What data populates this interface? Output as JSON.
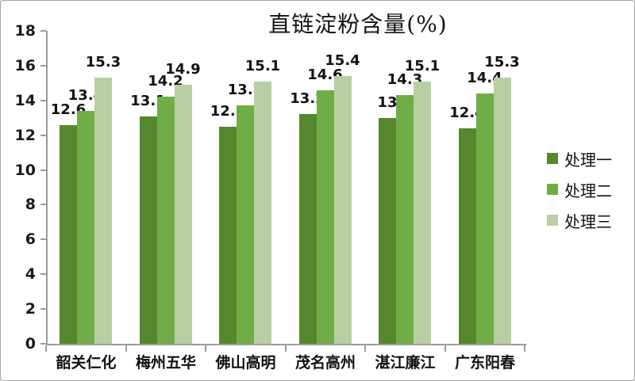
{
  "chart_data": {
    "type": "bar",
    "title": "直链淀粉含量(%)",
    "categories": [
      "韶关仁化",
      "梅州五华",
      "佛山高明",
      "茂名高州",
      "湛江廉江",
      "广东阳春"
    ],
    "series": [
      {
        "name": "处理一",
        "color": "#55882e",
        "values": [
          12.6,
          13.1,
          12.5,
          13.2,
          13,
          12.4
        ]
      },
      {
        "name": "处理二",
        "color": "#70ad47",
        "values": [
          13.4,
          14.2,
          13.7,
          14.6,
          14.3,
          14.4
        ]
      },
      {
        "name": "处理三",
        "color": "#b9cfa3",
        "values": [
          15.3,
          14.9,
          15.1,
          15.4,
          15.1,
          15.3
        ]
      }
    ],
    "xlabel": "",
    "ylabel": "",
    "ylim": [
      0,
      18
    ],
    "ytick_step": 2,
    "yticks": [
      0,
      2,
      4,
      6,
      8,
      10,
      12,
      14,
      16,
      18
    ],
    "grid": false,
    "value_labels_shown": true,
    "legend_position": "right",
    "colors": {
      "axis": "#9c9c9c",
      "text": "#111111",
      "background": "#ffffff",
      "border": "#a6a6a6"
    }
  }
}
